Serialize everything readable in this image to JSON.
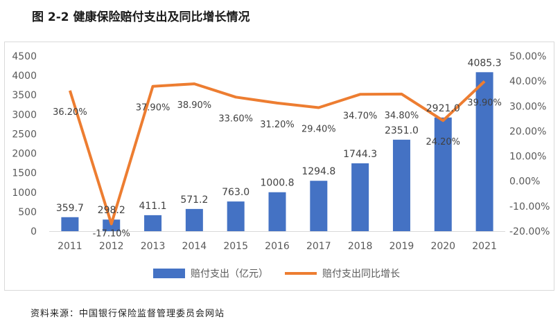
{
  "figure_title": "图 2-2  健康保险赔付支出及同比增长情况",
  "source_note": "资料来源：中国银行保险监督管理委员会网站",
  "colors": {
    "bar": "#4472c4",
    "line": "#ed7d31",
    "grid": "#d9d9d9",
    "text": "#595959"
  },
  "chart_data": {
    "type": "bar+line",
    "categories": [
      "2011",
      "2012",
      "2013",
      "2014",
      "2015",
      "2016",
      "2017",
      "2018",
      "2019",
      "2020",
      "2021"
    ],
    "series": [
      {
        "name": "赔付支出（亿元）",
        "type": "bar",
        "axis": "left",
        "values": [
          359.7,
          298.2,
          411.1,
          571.2,
          763.0,
          1000.8,
          1294.8,
          1744.3,
          2351.0,
          2921.0,
          4085.3
        ],
        "labels": [
          "359.7",
          "298.2",
          "411.1",
          "571.2",
          "763.0",
          "1000.8",
          "1294.8",
          "1744.3",
          "2351.0",
          "2921.0",
          "4085.3"
        ]
      },
      {
        "name": "赔付支出同比增长",
        "type": "line",
        "axis": "right",
        "values": [
          36.2,
          -17.1,
          37.9,
          38.9,
          33.6,
          31.2,
          29.4,
          34.7,
          34.8,
          24.2,
          39.9
        ],
        "labels": [
          "36.20%",
          "-17.10%",
          "37.90%",
          "38.90%",
          "33.60%",
          "31.20%",
          "29.40%",
          "34.70%",
          "34.80%",
          "24.20%",
          "39.90%"
        ]
      }
    ],
    "y_left": {
      "ylim": [
        0,
        4500
      ],
      "ticks": [
        "0",
        "500",
        "1000",
        "1500",
        "2000",
        "2500",
        "3000",
        "3500",
        "4000",
        "4500"
      ]
    },
    "y_right": {
      "ylim": [
        -20,
        50
      ],
      "ticks": [
        "-20.00%",
        "-10.00%",
        "0.00%",
        "10.00%",
        "20.00%",
        "30.00%",
        "40.00%",
        "50.00%"
      ]
    },
    "grid": false,
    "legend": "bottom"
  }
}
